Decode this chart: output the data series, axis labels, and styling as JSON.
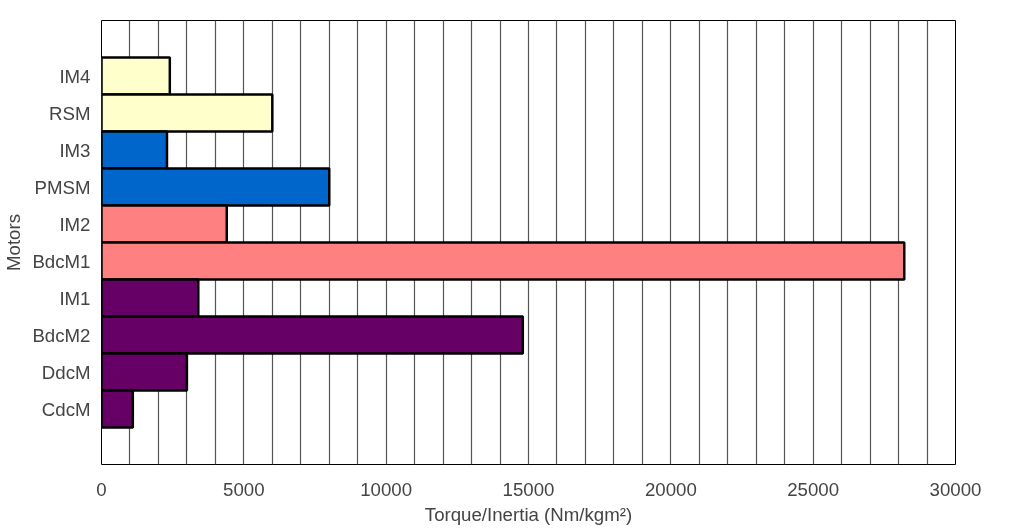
{
  "chart_data": {
    "type": "bar",
    "orientation": "horizontal",
    "xlabel": "Torque/Inertia (Nm/kgm²)",
    "ylabel": "Motors",
    "categories": [
      "IM4",
      "RSM",
      "IM3",
      "PMSM",
      "IM2",
      "BdcM1",
      "IM1",
      "BdcM2",
      "DdcM",
      "CdcM"
    ],
    "values": [
      2400,
      6000,
      2300,
      8000,
      4400,
      28200,
      3400,
      14800,
      3000,
      1100
    ],
    "colors": [
      "#ffffcc",
      "#ffffcc",
      "#0066cc",
      "#0066cc",
      "#ff8080",
      "#ff8080",
      "#660066",
      "#660066",
      "#660066",
      "#660066"
    ],
    "xlim": [
      0,
      30000
    ],
    "xticks": [
      0,
      {
        "value": 1000,
        "label": null
      },
      {
        "value": 2000,
        "label": null
      },
      {
        "value": 3000,
        "label": null
      },
      {
        "value": 4000,
        "label": null
      },
      5000,
      {
        "value": 6000,
        "label": null
      },
      {
        "value": 7000,
        "label": null
      },
      {
        "value": 8000,
        "label": null
      },
      {
        "value": 9000,
        "label": null
      },
      10000,
      {
        "value": 11000,
        "label": null
      },
      {
        "value": 12000,
        "label": null
      },
      {
        "value": 13000,
        "label": null
      },
      {
        "value": 14000,
        "label": null
      },
      15000,
      {
        "value": 16000,
        "label": null
      },
      {
        "value": 17000,
        "label": null
      },
      {
        "value": 18000,
        "label": null
      },
      {
        "value": 19000,
        "label": null
      },
      20000,
      {
        "value": 21000,
        "label": null
      },
      {
        "value": 22000,
        "label": null
      },
      {
        "value": 23000,
        "label": null
      },
      {
        "value": 24000,
        "label": null
      },
      25000,
      {
        "value": 26000,
        "label": null
      },
      {
        "value": 27000,
        "label": null
      },
      {
        "value": 28000,
        "label": null
      },
      {
        "value": 29000,
        "label": null
      },
      30000
    ],
    "grid": "x"
  }
}
